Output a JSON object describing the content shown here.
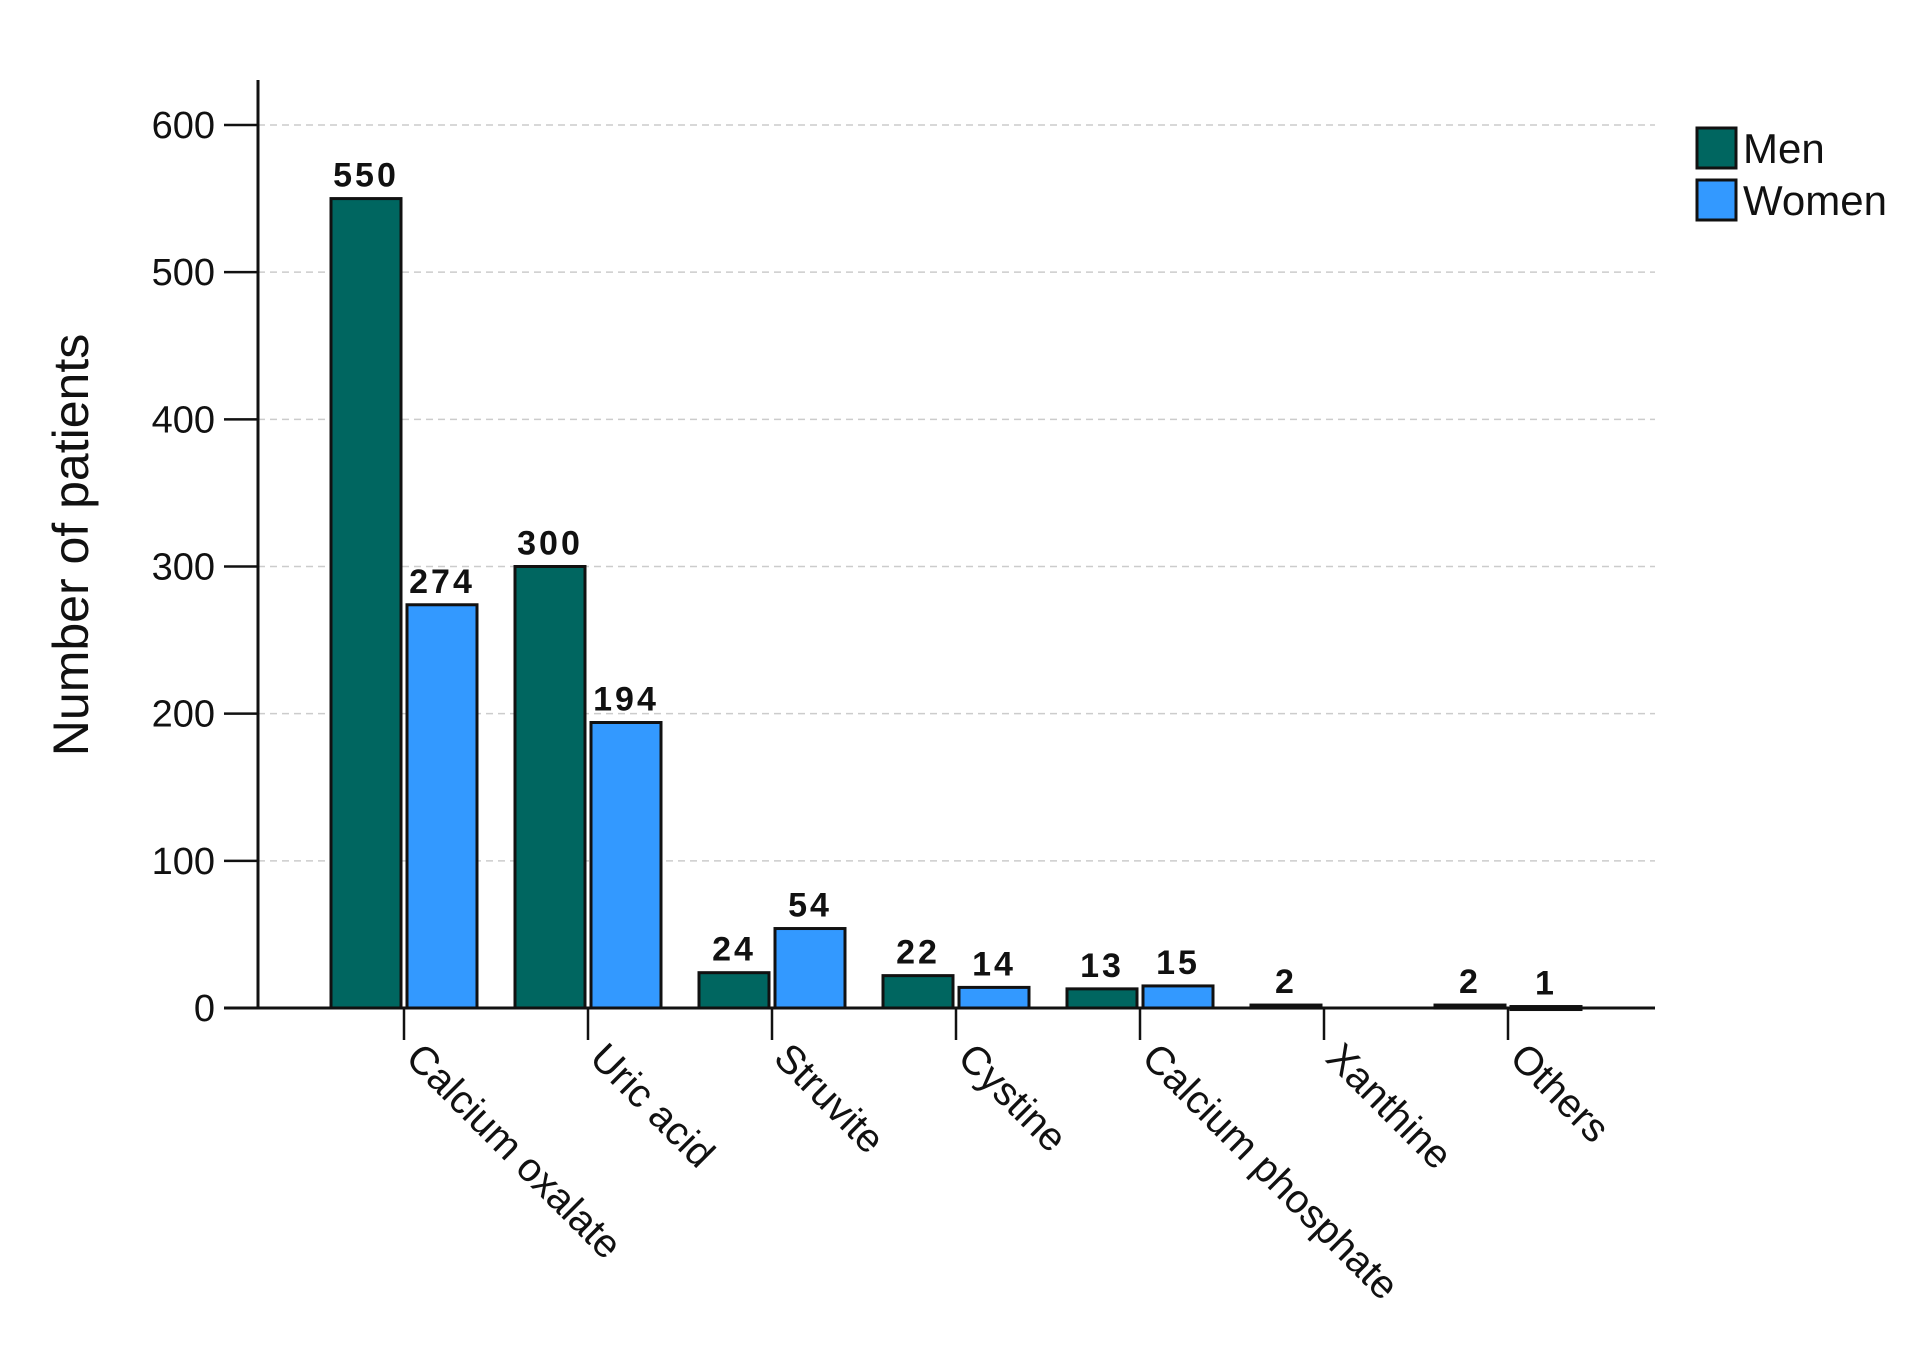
{
  "chart_data": {
    "type": "bar",
    "title": "",
    "xlabel": "",
    "ylabel": "Number of patients",
    "ylim": [
      0,
      600
    ],
    "yticks": [
      0,
      100,
      200,
      300,
      400,
      500,
      600
    ],
    "grid": "horizontal dashed",
    "legend_position": "top-right",
    "categories": [
      "Calcium oxalate",
      "Uric acid",
      "Struvite",
      "Cystine",
      "Calcium phosphate",
      "Xanthine",
      "Others"
    ],
    "series": [
      {
        "name": "Men",
        "color": "#006660",
        "values": [
          550,
          300,
          24,
          22,
          13,
          2,
          2
        ],
        "labels": [
          "550",
          "300",
          "24",
          "22",
          "13",
          "2",
          "2"
        ]
      },
      {
        "name": "Women",
        "color": "#3399ff",
        "values": [
          274,
          194,
          54,
          14,
          15,
          0,
          1
        ],
        "labels": [
          "274",
          "194",
          "54",
          "14",
          "15",
          "",
          "1"
        ]
      }
    ]
  }
}
